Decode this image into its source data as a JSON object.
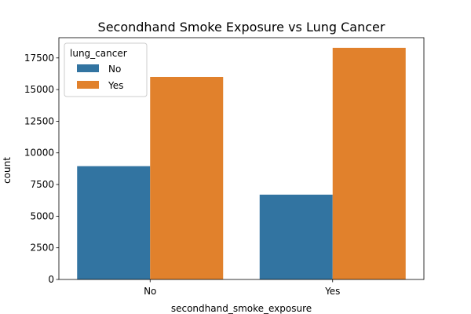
{
  "chart_data": {
    "type": "bar",
    "title": "Secondhand Smoke Exposure vs Lung Cancer",
    "xlabel": "secondhand_smoke_exposure",
    "ylabel": "count",
    "categories": [
      "No",
      "Yes"
    ],
    "series": [
      {
        "name": "No",
        "color": "#3274a1",
        "values": [
          8950,
          6700
        ]
      },
      {
        "name": "Yes",
        "color": "#e1812c",
        "values": [
          16000,
          18300
        ]
      }
    ],
    "legend_title": "lung_cancer",
    "legend_position": "top-left",
    "ylim": [
      0,
      19100
    ],
    "yticks": [
      0,
      2500,
      5000,
      7500,
      10000,
      12500,
      15000,
      17500
    ],
    "grid": false
  }
}
